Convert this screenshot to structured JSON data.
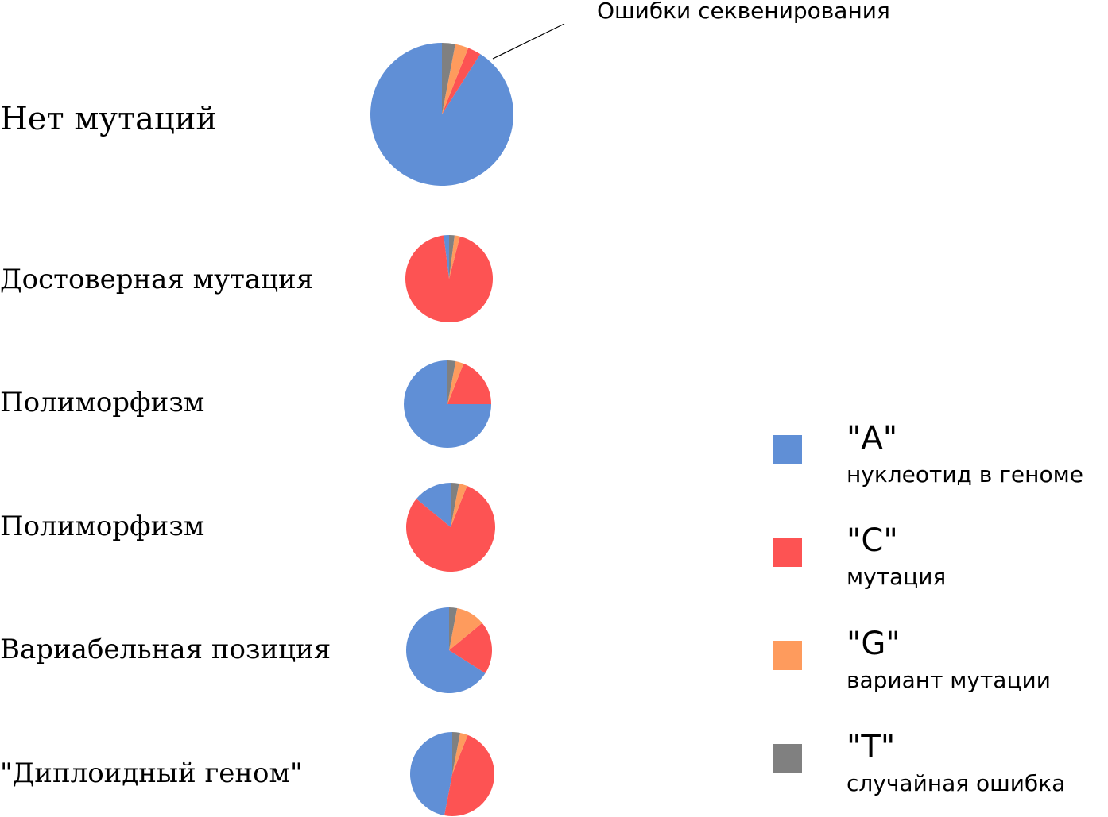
{
  "chart_data": {
    "type": "pie",
    "annotation": "Ошибки секвенирования",
    "legend": [
      {
        "key": "A",
        "label": "\"A\"",
        "description": "нуклеотид в геноме",
        "color": "#608fd6"
      },
      {
        "key": "C",
        "label": "\"C\"",
        "description": "мутация",
        "color": "#fd5353"
      },
      {
        "key": "G",
        "label": "\"G\"",
        "description": "вариант мутации",
        "color": "#fe9b5d"
      },
      {
        "key": "T",
        "label": "\"T\"",
        "description": "случайная ошибка",
        "color": "#808080"
      }
    ],
    "pies": [
      {
        "label": "Нет мутаций",
        "values": {
          "A": 91,
          "C": 3,
          "G": 3,
          "T": 3
        }
      },
      {
        "label": "Достоверная мутация",
        "values": {
          "A": 2,
          "C": 94,
          "G": 2,
          "T": 2
        }
      },
      {
        "label": "Полиморфизм",
        "values": {
          "A": 75,
          "C": 19,
          "G": 3,
          "T": 3
        }
      },
      {
        "label": "Полиморфизм",
        "values": {
          "A": 14,
          "C": 80,
          "G": 3,
          "T": 3
        }
      },
      {
        "label": "Вариабельная позиция",
        "values": {
          "A": 66,
          "C": 20,
          "G": 11,
          "T": 3
        }
      },
      {
        "label": "\"Диплоидный геном\"",
        "values": {
          "A": 47,
          "C": 47,
          "G": 3,
          "T": 3
        }
      }
    ]
  }
}
